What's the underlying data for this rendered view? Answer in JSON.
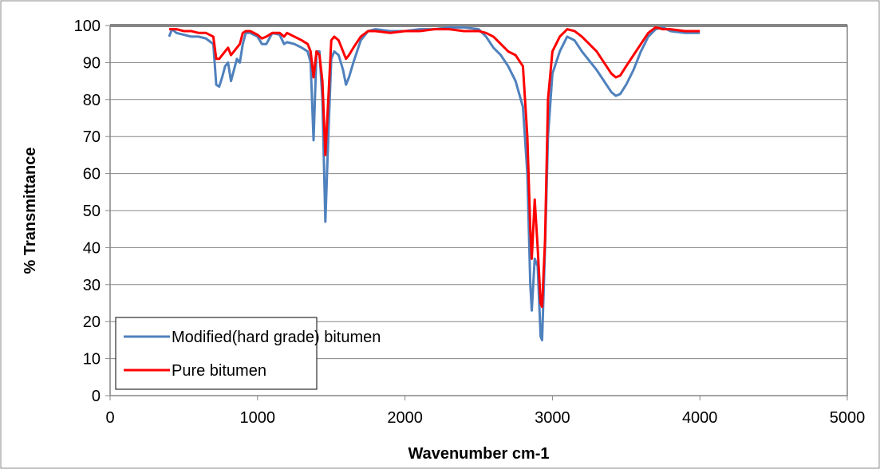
{
  "chart_data": {
    "type": "line",
    "x_label": "Wavenumber cm-1",
    "y_label": "% Transmittance",
    "xlim": [
      0,
      5000
    ],
    "xticks": [
      0,
      1000,
      2000,
      3000,
      4000,
      5000
    ],
    "ylim": [
      0,
      100
    ],
    "yticks": [
      0,
      10,
      20,
      30,
      40,
      50,
      60,
      70,
      80,
      90,
      100
    ],
    "grid": true,
    "legend": "lower left",
    "x": [
      400,
      420,
      450,
      500,
      550,
      600,
      650,
      700,
      720,
      740,
      760,
      780,
      800,
      820,
      840,
      860,
      880,
      900,
      920,
      950,
      1000,
      1030,
      1060,
      1100,
      1150,
      1180,
      1200,
      1250,
      1300,
      1340,
      1360,
      1380,
      1400,
      1420,
      1440,
      1460,
      1480,
      1500,
      1520,
      1550,
      1580,
      1600,
      1620,
      1650,
      1700,
      1750,
      1800,
      1900,
      2000,
      2100,
      2200,
      2300,
      2400,
      2500,
      2550,
      2600,
      2650,
      2700,
      2750,
      2800,
      2830,
      2850,
      2860,
      2880,
      2900,
      2920,
      2930,
      2950,
      2970,
      3000,
      3050,
      3100,
      3150,
      3200,
      3300,
      3400,
      3430,
      3460,
      3500,
      3550,
      3600,
      3650,
      3700,
      3750,
      3800,
      3900,
      4000
    ],
    "series": [
      {
        "name": "Modified(hard grade) bitumen",
        "color": "#4f81bd",
        "values": [
          97,
          99,
          98,
          97.5,
          97,
          97,
          96.5,
          95,
          84,
          83.5,
          86,
          89,
          90,
          85,
          88,
          91,
          90,
          95,
          98,
          98,
          97,
          95,
          95,
          98,
          97.5,
          95,
          95.5,
          95,
          94,
          93,
          90,
          69,
          93,
          93,
          80,
          47,
          70,
          91,
          93,
          92,
          88,
          84,
          86,
          90,
          96,
          98.5,
          99,
          98.5,
          98.5,
          99,
          99,
          99.5,
          99.5,
          99,
          97,
          94,
          92,
          89,
          85,
          78,
          60,
          30,
          23,
          37,
          35,
          16,
          15,
          40,
          70,
          87,
          93,
          97,
          96,
          93,
          88,
          82,
          81,
          81.5,
          84,
          88,
          93,
          97,
          99,
          99.5,
          98.5,
          98,
          98
        ]
      },
      {
        "name": "Pure bitumen",
        "color": "#ff0000",
        "values": [
          99,
          99,
          99,
          98.5,
          98.5,
          98,
          98,
          97,
          91,
          91,
          92,
          93,
          94,
          92,
          93,
          94,
          95,
          98,
          98.5,
          98.5,
          97.5,
          96.5,
          97,
          98,
          98,
          97,
          98,
          97,
          96,
          95,
          93,
          86,
          93,
          92,
          85,
          65,
          80,
          96,
          97,
          96,
          93,
          91,
          92,
          94,
          97,
          98.5,
          98.5,
          98,
          98.5,
          98.5,
          99,
          99,
          98.5,
          98.5,
          98,
          97,
          95,
          93,
          92,
          89,
          70,
          45,
          37,
          53,
          40,
          25,
          24,
          42,
          80,
          93,
          97,
          99,
          98.5,
          97,
          93,
          87,
          86,
          86.5,
          89,
          92,
          95,
          98,
          99.5,
          99,
          99,
          98.5,
          98.5
        ]
      }
    ]
  }
}
